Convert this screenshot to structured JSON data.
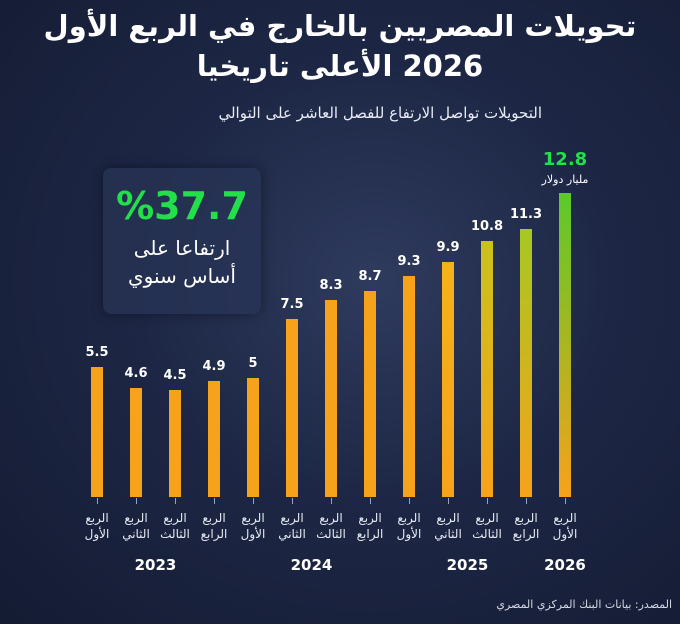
{
  "chart_data": {
    "type": "bar",
    "title": "تحويلات المصريين بالخارج في الربع الأول 2026 الأعلى تاريخيا",
    "subtitle": "التحويلات تواصل الارتفاع للفصل العاشر على التوالي",
    "highlight": {
      "value": "%37.7",
      "text": "ارتفاعا على أساس سنوي"
    },
    "unit_label": "مليار دولار",
    "source": "المصدر: بيانات البنك المركزي المصري",
    "categories": [
      "الربع الأول",
      "الربع الثاني",
      "الربع الثالث",
      "الربع الرابع",
      "الربع الأول",
      "الربع الثاني",
      "الربع الثالث",
      "الربع الرابع",
      "الربع الأول",
      "الربع الثاني",
      "الربع الثالث",
      "الربع الرابع",
      "الربع الأول"
    ],
    "values": [
      5.5,
      4.6,
      4.5,
      4.9,
      5.0,
      7.5,
      8.3,
      8.7,
      9.3,
      9.9,
      10.8,
      11.3,
      12.8
    ],
    "colors": [
      "#f7a21b",
      "#f7a21b",
      "#f7a21b",
      "#f7a21b",
      "#f7a21b",
      "#f7a21b",
      "#f7a21b",
      "#f7a21b",
      "#f7a21b",
      "#f5b21a",
      "#c9c21e",
      "#a6c823",
      "#5cc92a"
    ],
    "groups": [
      {
        "label": "2023",
        "from": 0,
        "to": 3
      },
      {
        "label": "2024",
        "from": 4,
        "to": 7
      },
      {
        "label": "2025",
        "from": 8,
        "to": 11
      },
      {
        "label": "2026",
        "from": 12,
        "to": 12
      }
    ],
    "ylim": [
      0,
      14
    ]
  }
}
